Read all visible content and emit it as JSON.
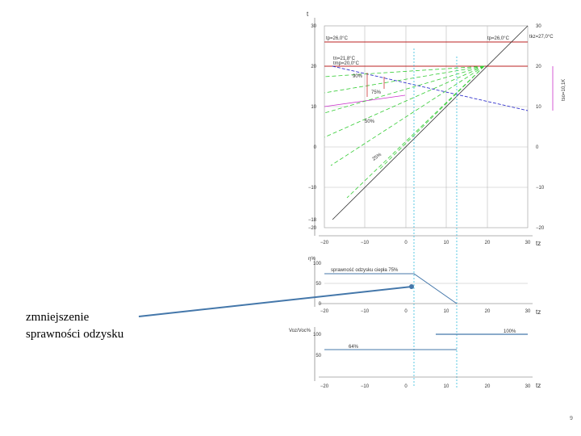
{
  "annotation": [
    "zmniejszenie",
    "sprawności odzysku"
  ],
  "page_number": "9",
  "top_chart": {
    "y_axis_label": "t",
    "x_axis_label": "tz",
    "left_ticks": [
      "30",
      "20",
      "10",
      "0",
      "−10",
      "−18",
      "−20"
    ],
    "right_ticks": [
      "30",
      "20",
      "10",
      "0",
      "−10",
      "−20"
    ],
    "x_ticks": [
      "−20",
      "−10",
      "0",
      "10",
      "20",
      "30"
    ],
    "labels": [
      "tp=26,0°C",
      "tp=26,0°C",
      "tkz=27,0°C",
      "tn=21,8°C",
      "tmp=20,0°C",
      "90%",
      "75%",
      "50%",
      "25%",
      "tso=10,1K"
    ]
  },
  "middle_chart": {
    "y_axis_label": "η%",
    "x_axis_label": "tz",
    "y_ticks": [
      "100",
      "50",
      "0"
    ],
    "x_ticks": [
      "−20",
      "−10",
      "0",
      "10",
      "20",
      "30"
    ],
    "label": "sprawność odzysku ciepła 75%"
  },
  "bottom_chart": {
    "y_axis_label": "Voz/Voc%",
    "x_axis_label": "tz",
    "y_ticks": [
      "100",
      "50"
    ],
    "x_ticks": [
      "−20",
      "−10",
      "0",
      "10",
      "20",
      "30"
    ],
    "labels": [
      "64%",
      "100%"
    ]
  }
}
